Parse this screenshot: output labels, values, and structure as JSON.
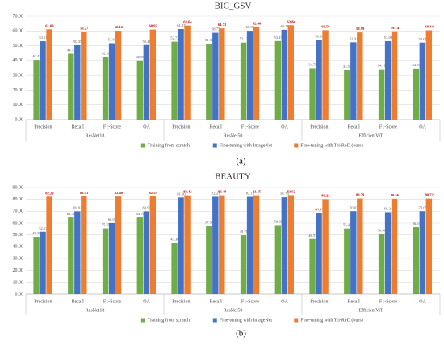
{
  "chart_data": [
    {
      "type": "bar",
      "title": "BIC_GSV",
      "caption": "(a)",
      "groups": [
        "ResNet18",
        "ResNet50",
        "EfficientViT"
      ],
      "categories": [
        "Precision",
        "Recall",
        "F1-Score",
        "OA",
        "Precision",
        "Recall",
        "F1-Score",
        "OA",
        "Precision",
        "Recall",
        "F1-Score",
        "OA"
      ],
      "series": [
        {
          "name": "Training from scratch",
          "color": "#70ad47",
          "values": [
            40.43,
            44.57,
            42.31,
            40.05,
            52.72,
            51.36,
            52.13,
            53.15,
            34.75,
            33.52,
            34.1,
            34.53
          ],
          "value_labels": [
            "40.43",
            "44.57",
            "42.31",
            "40.05",
            "52.72",
            "51.36",
            "52.13",
            "53.15",
            "34.75",
            "33.52",
            "34.10",
            "34.53"
          ]
        },
        {
          "name": "Fine-tuning with ImageNet",
          "color": "#4472c4",
          "values": [
            53.01,
            50.35,
            51.69,
            50.46,
            61.27,
            58.75,
            60.09,
            60.78,
            53.89,
            52.31,
            53.08,
            52.09
          ],
          "value_labels": [
            "53.01",
            "50.35",
            "51.69",
            "50.46",
            "61.27",
            "58.75",
            "60.09",
            "60.78",
            "53.89",
            "52.31",
            "53.08",
            "52.09"
          ]
        },
        {
          "name": "Fine-tuning with Tri-ReD (ours)",
          "color": "#ed7d31",
          "values": [
            61.09,
            59.27,
            60.12,
            60.92,
            63.64,
            61.71,
            62.66,
            63.84,
            60.5,
            58.99,
            59.74,
            60.44
          ],
          "value_labels": [
            "61.09",
            "59.27",
            "60.12",
            "60.92",
            "63.64",
            "61.71",
            "62.66",
            "63.84",
            "60.50",
            "58.99",
            "59.74",
            "60.44"
          ]
        }
      ],
      "ylim": [
        0,
        70
      ],
      "yticks": [
        {
          "value": 0,
          "label": "0.00"
        },
        {
          "value": 10,
          "label": "10.00"
        },
        {
          "value": 20,
          "label": "20.00"
        },
        {
          "value": 30,
          "label": "30.00"
        },
        {
          "value": 40,
          "label": "40.00"
        },
        {
          "value": 50,
          "label": "50.00"
        },
        {
          "value": 60,
          "label": "60.00"
        },
        {
          "value": 70,
          "label": "70.00"
        }
      ],
      "grid": true,
      "legend": "bottom"
    },
    {
      "type": "bar",
      "title": "BEAUTY",
      "caption": "(b)",
      "groups": [
        "ResNet18",
        "ResNet50",
        "EfficientViT"
      ],
      "categories": [
        "Precision",
        "Recall",
        "F1-Score",
        "OA",
        "Precision",
        "Recall",
        "F1-Score",
        "OA",
        "Precision",
        "Recall",
        "F1-Score",
        "OA"
      ],
      "series": [
        {
          "name": "Training from scratch",
          "color": "#70ad47",
          "values": [
            48.39,
            64.7,
            55.55,
            64.7,
            43.3,
            57.57,
            49.7,
            58.35,
            46.57,
            55.45,
            50.84,
            56.61
          ],
          "value_labels": [
            "48.39",
            "64.70",
            "55.55",
            "64.70",
            "43.30",
            "57.57",
            "49.70",
            "58.35",
            "46.57",
            "55.45",
            "50.84",
            "56.61"
          ]
        },
        {
          "name": "Fine-tuning with ImageNet",
          "color": "#4472c4",
          "values": [
            52.67,
            69.92,
            60.08,
            69.9,
            81.6,
            82.21,
            82.13,
            81.73,
            68.45,
            70.07,
            69.24,
            70.05
          ],
          "value_labels": [
            "52.67",
            "69.92",
            "60.08",
            "69.90",
            "81.60",
            "82.21",
            "82.13",
            "81.73",
            "68.45",
            "70.07",
            "69.24",
            "70.05"
          ]
        },
        {
          "name": "Fine-tuning with Tri-ReD (ours)",
          "color": "#ed7d31",
          "values": [
            82.29,
            82.51,
            82.4,
            82.55,
            83.42,
            83.48,
            83.45,
            83.62,
            80.23,
            80.79,
            80.56,
            80.72
          ],
          "value_labels": [
            "82.29",
            "82.51",
            "82.40",
            "82.55",
            "83.42",
            "83.48",
            "83.45",
            "83.62",
            "80.23",
            "80.79",
            "80.56",
            "80.72"
          ]
        }
      ],
      "ylim": [
        0,
        90
      ],
      "yticks": [
        {
          "value": 0,
          "label": "0.00"
        },
        {
          "value": 10,
          "label": "10.00"
        },
        {
          "value": 20,
          "label": "20.00"
        },
        {
          "value": 30,
          "label": "30.00"
        },
        {
          "value": 40,
          "label": "40.00"
        },
        {
          "value": 50,
          "label": "50.00"
        },
        {
          "value": 60,
          "label": "60.00"
        },
        {
          "value": 70,
          "label": "70.00"
        },
        {
          "value": 80,
          "label": "80.00"
        },
        {
          "value": 90,
          "label": "90.00"
        }
      ],
      "grid": true,
      "legend": "bottom"
    }
  ]
}
